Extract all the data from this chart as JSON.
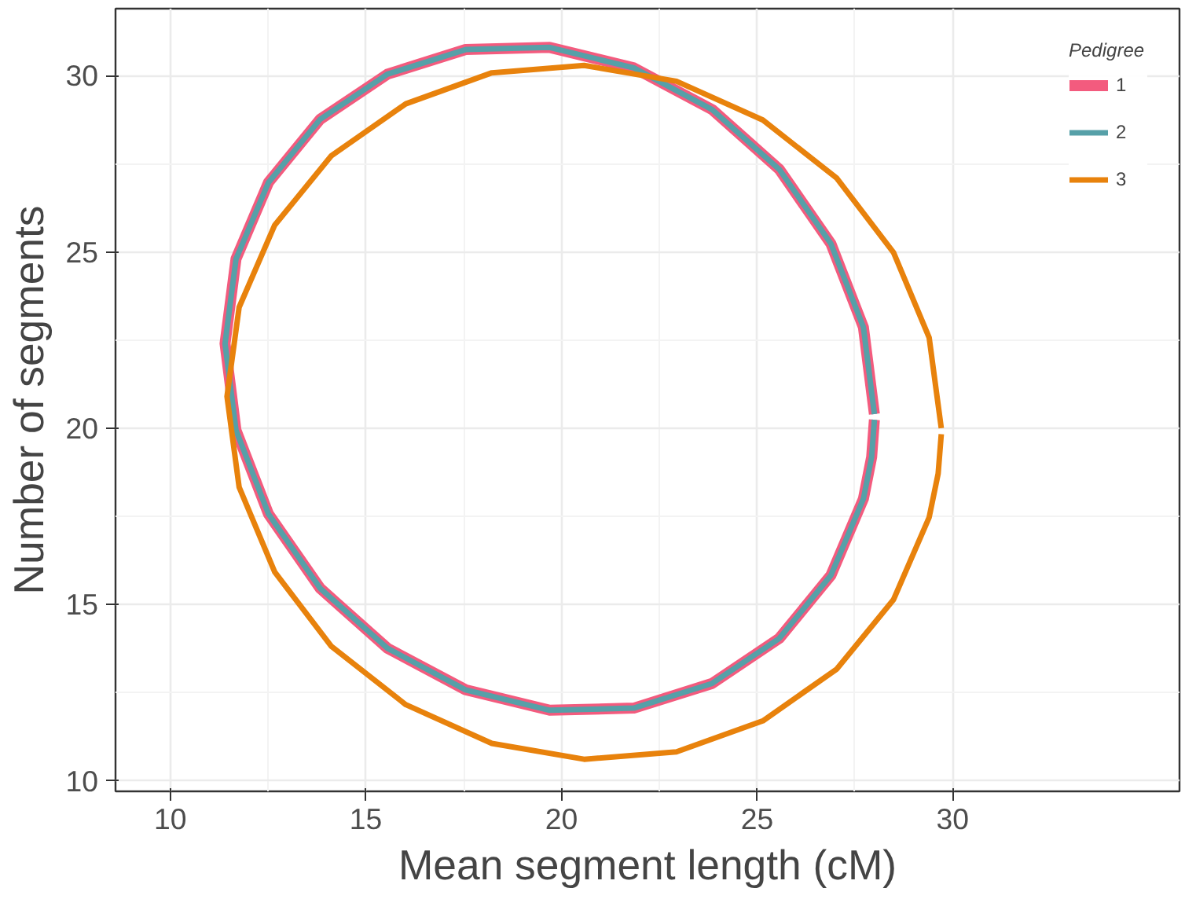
{
  "chart_data": {
    "type": "line",
    "xlabel": "Mean segment length (cM)",
    "ylabel": "Number of segments",
    "legend_title": "Pedigree",
    "legend": "top right",
    "grid": true,
    "xlim": [
      8.6,
      35.8
    ],
    "ylim": [
      9.7,
      31.9
    ],
    "xticks": [
      10,
      15,
      20,
      25,
      30
    ],
    "yticks": [
      10,
      15,
      20,
      25,
      30
    ],
    "series": [
      {
        "name": "1",
        "color": "#f35b7e",
        "x": [
          28.0,
          27.72,
          26.89,
          25.57,
          23.85,
          21.85,
          19.7,
          17.55,
          15.55,
          13.83,
          12.51,
          11.68,
          11.4,
          11.68,
          12.51,
          13.83,
          15.55,
          17.55,
          19.7,
          21.85,
          23.85,
          25.57,
          26.89,
          27.72,
          27.93,
          28.0
        ],
        "values": [
          20.4,
          22.86,
          25.23,
          27.34,
          29.04,
          30.22,
          30.8,
          30.74,
          30.04,
          28.76,
          26.97,
          24.8,
          22.4,
          19.94,
          17.57,
          15.46,
          13.76,
          12.58,
          12.0,
          12.06,
          12.76,
          14.04,
          15.83,
          18.0,
          19.18,
          20.24
        ]
      },
      {
        "name": "2",
        "color": "#56a0a8",
        "x": [
          28.0,
          27.72,
          26.89,
          25.57,
          23.85,
          21.85,
          19.7,
          17.55,
          15.55,
          13.83,
          12.51,
          11.68,
          11.4,
          11.68,
          12.51,
          13.83,
          15.55,
          17.55,
          19.7,
          21.85,
          23.85,
          25.57,
          26.89,
          27.72,
          27.93,
          28.0
        ],
        "values": [
          20.4,
          22.86,
          25.23,
          27.34,
          29.04,
          30.22,
          30.8,
          30.74,
          30.04,
          28.76,
          26.97,
          24.8,
          22.4,
          19.94,
          17.57,
          15.46,
          13.76,
          12.58,
          12.0,
          12.06,
          12.76,
          14.04,
          15.83,
          18.0,
          19.18,
          20.24
        ]
      },
      {
        "name": "3",
        "color": "#e8820c",
        "x": [
          29.71,
          29.4,
          28.49,
          27.04,
          25.15,
          22.94,
          20.58,
          18.22,
          16.02,
          14.12,
          12.67,
          11.76,
          11.45,
          11.76,
          12.67,
          14.12,
          16.02,
          18.22,
          20.58,
          22.94,
          25.15,
          27.04,
          28.49,
          29.4,
          29.63,
          29.71
        ],
        "values": [
          20.0,
          22.57,
          24.98,
          27.09,
          28.74,
          29.84,
          30.29,
          30.08,
          29.2,
          27.73,
          25.76,
          23.43,
          20.9,
          18.33,
          15.92,
          13.81,
          12.16,
          11.06,
          10.61,
          10.82,
          11.7,
          13.17,
          15.14,
          17.47,
          18.71,
          19.83
        ]
      }
    ]
  }
}
